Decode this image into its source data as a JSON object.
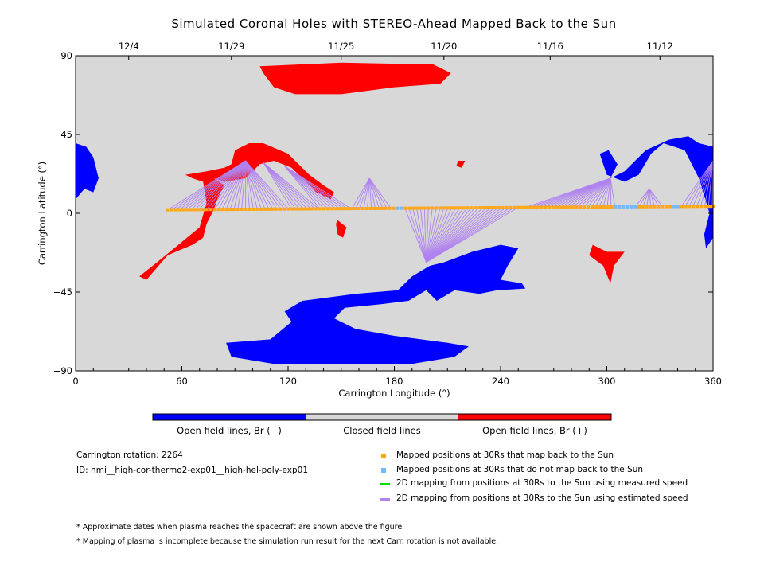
{
  "title": "Simulated Coronal Holes with STEREO-Ahead Mapped Back to the Sun",
  "chart_data": {
    "type": "map",
    "xlabel": "Carrington Longitude (°)",
    "ylabel": "Carrington Latitude (°)",
    "xlim": [
      0,
      360
    ],
    "ylim": [
      -90,
      90
    ],
    "xticks": [
      0,
      60,
      120,
      180,
      240,
      300,
      360
    ],
    "yticks": [
      -90,
      -45,
      0,
      45,
      90
    ],
    "top_axis": {
      "dates": [
        "12/4",
        "11/29",
        "11/25",
        "11/20",
        "11/16",
        "11/12"
      ],
      "date_longitudes": [
        30,
        88,
        150,
        208,
        268,
        330
      ]
    },
    "background_color": "#d8d8d8",
    "colorbar": [
      {
        "label": "Open field lines, Br (−)",
        "color": "#0000ff"
      },
      {
        "label": "Closed field lines",
        "color": "#d8d8d8"
      },
      {
        "label": "Open field lines, Br (+)",
        "color": "#ff0000"
      }
    ],
    "coronal_holes_negative": [
      [
        [
          0,
          40
        ],
        [
          6,
          38
        ],
        [
          10,
          32
        ],
        [
          13,
          20
        ],
        [
          10,
          12
        ],
        [
          5,
          14
        ],
        [
          0,
          8
        ]
      ],
      [
        [
          85,
          -74
        ],
        [
          110,
          -72
        ],
        [
          122,
          -62
        ],
        [
          118,
          -56
        ],
        [
          128,
          -50
        ],
        [
          158,
          -46
        ],
        [
          182,
          -44
        ],
        [
          190,
          -36
        ],
        [
          200,
          -30
        ],
        [
          208,
          -28
        ],
        [
          224,
          -22
        ],
        [
          240,
          -18
        ],
        [
          250,
          -20
        ],
        [
          244,
          -30
        ],
        [
          240,
          -38
        ],
        [
          252,
          -40
        ],
        [
          254,
          -43
        ],
        [
          238,
          -44
        ],
        [
          228,
          -46
        ],
        [
          214,
          -44
        ],
        [
          204,
          -50
        ],
        [
          198,
          -44
        ],
        [
          188,
          -50
        ],
        [
          172,
          -52
        ],
        [
          152,
          -54
        ],
        [
          146,
          -60
        ],
        [
          158,
          -66
        ],
        [
          180,
          -70
        ],
        [
          210,
          -74
        ],
        [
          222,
          -76
        ],
        [
          214,
          -82
        ],
        [
          190,
          -86
        ],
        [
          155,
          -86
        ],
        [
          112,
          -86
        ],
        [
          88,
          -82
        ]
      ],
      [
        [
          296,
          34
        ],
        [
          301,
          36
        ],
        [
          306,
          28
        ],
        [
          302,
          20
        ],
        [
          310,
          24
        ],
        [
          316,
          30
        ],
        [
          322,
          36
        ],
        [
          335,
          42
        ],
        [
          346,
          44
        ],
        [
          352,
          40
        ],
        [
          360,
          38
        ],
        [
          360,
          -14
        ],
        [
          356,
          -20
        ],
        [
          355,
          -12
        ],
        [
          358,
          0
        ],
        [
          352,
          20
        ],
        [
          344,
          36
        ],
        [
          332,
          40
        ],
        [
          325,
          34
        ],
        [
          318,
          22
        ],
        [
          310,
          18
        ],
        [
          300,
          22
        ],
        [
          298,
          28
        ]
      ]
    ],
    "coronal_holes_positive": [
      [
        [
          104,
          84
        ],
        [
          150,
          86
        ],
        [
          202,
          85
        ],
        [
          212,
          80
        ],
        [
          206,
          74
        ],
        [
          180,
          72
        ],
        [
          150,
          68
        ],
        [
          124,
          68
        ],
        [
          112,
          72
        ],
        [
          106,
          80
        ]
      ],
      [
        [
          88,
          28
        ],
        [
          90,
          36
        ],
        [
          98,
          40
        ],
        [
          106,
          40
        ],
        [
          120,
          34
        ],
        [
          126,
          28
        ],
        [
          132,
          22
        ],
        [
          140,
          16
        ],
        [
          146,
          12
        ],
        [
          144,
          8
        ],
        [
          136,
          12
        ],
        [
          130,
          18
        ],
        [
          122,
          26
        ],
        [
          112,
          30
        ],
        [
          104,
          28
        ],
        [
          96,
          20
        ],
        [
          84,
          18
        ],
        [
          78,
          20
        ],
        [
          84,
          16
        ],
        [
          80,
          8
        ],
        [
          78,
          2
        ],
        [
          74,
          -6
        ],
        [
          72,
          -14
        ],
        [
          66,
          -18
        ],
        [
          52,
          -24
        ],
        [
          40,
          -38
        ],
        [
          36,
          -36
        ],
        [
          46,
          -28
        ],
        [
          58,
          -18
        ],
        [
          70,
          -8
        ],
        [
          74,
          6
        ],
        [
          72,
          18
        ],
        [
          66,
          20
        ],
        [
          62,
          22
        ],
        [
          74,
          24
        ],
        [
          84,
          26
        ]
      ],
      [
        [
          148,
          -4
        ],
        [
          153,
          -8
        ],
        [
          151,
          -14
        ],
        [
          148,
          -12
        ],
        [
          147,
          -6
        ]
      ],
      [
        [
          216,
          30
        ],
        [
          220,
          30
        ],
        [
          218,
          26
        ],
        [
          215,
          27
        ]
      ],
      [
        [
          292,
          -18
        ],
        [
          300,
          -22
        ],
        [
          310,
          -22
        ],
        [
          304,
          -30
        ],
        [
          302,
          -40
        ],
        [
          298,
          -30
        ],
        [
          290,
          -24
        ]
      ]
    ],
    "mapped_back_color": "#ffa71a",
    "not_mapped_color": "#74b9ff",
    "measured_speed_color": "#00dd00",
    "estimated_speed_color": "#b083f0",
    "mapped_track": {
      "lon_start": 52,
      "lon_end": 360,
      "step": 2.2,
      "lat_start": 2,
      "lat_end": 4,
      "not_mapped_ranges": [
        [
          180,
          186
        ],
        [
          304,
          316
        ],
        [
          336,
          342
        ]
      ]
    },
    "mapping_fans": [
      {
        "from": [
          52,
          122
        ],
        "to": [
          96,
          30
        ]
      },
      {
        "from": [
          122,
          138
        ],
        "to": [
          106,
          29
        ]
      },
      {
        "from": [
          138,
          156
        ],
        "to": [
          118,
          27
        ]
      },
      {
        "from": [
          156,
          180
        ],
        "to": [
          166,
          20
        ]
      },
      {
        "from": [
          186,
          250
        ],
        "to": [
          198,
          -28
        ]
      },
      {
        "from": [
          254,
          306
        ],
        "to": [
          302,
          20
        ]
      },
      {
        "from": [
          316,
          332
        ],
        "to": [
          324,
          14
        ]
      },
      {
        "from": [
          342,
          360
        ],
        "to": [
          360,
          30
        ]
      }
    ]
  },
  "colorbar_labels": {
    "neg": "Open field lines, Br (−)",
    "closed": "Closed field lines",
    "pos": "Open field lines, Br (+)"
  },
  "info": {
    "rotation": "Carrington rotation: 2264",
    "id": "ID: hmi__high-cor-thermo2-exp01__high-hel-poly-exp01"
  },
  "legend": {
    "mapped": "Mapped positions at 30Rs that map back to the Sun",
    "not_mapped": "Mapped positions at 30Rs that do not map back to the Sun",
    "measured": "2D mapping from positions at 30Rs to the Sun using measured speed",
    "estimated": "2D mapping from positions at 30Rs to the Sun using estimated speed"
  },
  "notes": {
    "dates": "* Approximate dates when plasma reaches the spacecraft are shown above the figure.",
    "incomplete": "* Mapping of plasma is incomplete because the simulation run result for the next Carr. rotation is not available."
  }
}
